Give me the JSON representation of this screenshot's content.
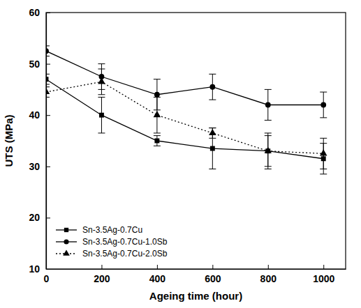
{
  "chart_data": {
    "type": "line",
    "x_label": "Ageing time (hour)",
    "y_label": "UTS (MPa)",
    "x": [
      0,
      200,
      400,
      600,
      800,
      1000
    ],
    "xlim": [
      0,
      1080
    ],
    "xticks": [
      0,
      200,
      400,
      600,
      800,
      1000
    ],
    "ylim": [
      10,
      60
    ],
    "yticks": [
      10,
      20,
      30,
      40,
      50,
      60
    ],
    "grid": false,
    "legend": "lower left",
    "series": [
      {
        "name": "Sn-3.5Ag-0.7Cu",
        "color": "#000000",
        "marker": "square",
        "line_style": "solid",
        "values": [
          47,
          40,
          35,
          33.5,
          33,
          31.5
        ],
        "errors": [
          1,
          3.5,
          1,
          4,
          3,
          3
        ]
      },
      {
        "name": "Sn-3.5Ag-0.7Cu-1.0Sb",
        "color": "#000000",
        "marker": "circle",
        "line_style": "solid",
        "values": [
          52.5,
          47.5,
          44,
          45.5,
          42,
          42
        ],
        "errors": [
          1,
          2.5,
          3,
          2.5,
          3,
          2.5
        ]
      },
      {
        "name": "Sn-3.5Ag-0.7Cu-2.0Sb",
        "color": "#000000",
        "marker": "triangle",
        "line_style": "dotted",
        "values": [
          44.5,
          46.5,
          40,
          36.5,
          33,
          32.5
        ],
        "errors": [
          1,
          2.5,
          3.5,
          1,
          3.5,
          3
        ]
      }
    ]
  }
}
